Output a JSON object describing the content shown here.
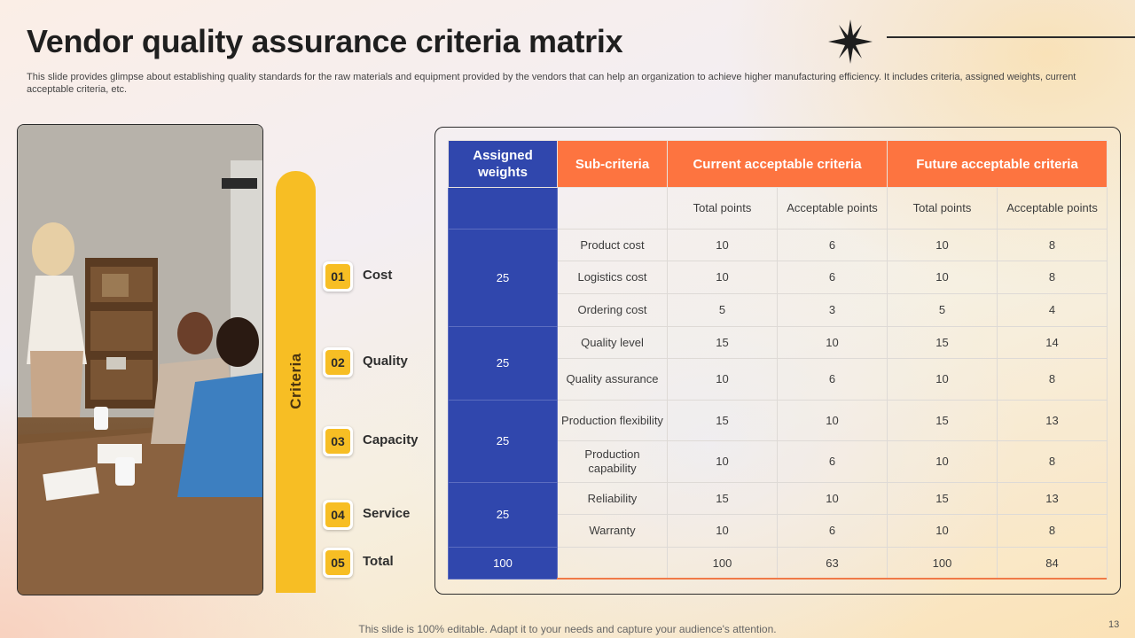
{
  "slide": {
    "title": "Vendor quality assurance criteria matrix",
    "subtitle": "This slide provides glimpse about establishing quality standards for the raw materials and equipment provided by the vendors that can help an organization to achieve higher manufacturing efficiency. It includes criteria, assigned weights, current acceptable criteria, etc.",
    "footer": "This slide is 100% editable. Adapt it to your needs and capture your audience's attention.",
    "page_number": "13"
  },
  "colors": {
    "accent_yellow": "#f7be24",
    "header_blue": "#3047ad",
    "header_orange": "#fd7440"
  },
  "icons": {
    "decoration": "star-burst-icon"
  },
  "photo": {
    "subject": "office-meeting-photo"
  },
  "criteria": {
    "label": "Criteria",
    "items": [
      {
        "num": "01",
        "name": "Cost"
      },
      {
        "num": "02",
        "name": "Quality"
      },
      {
        "num": "03",
        "name": "Capacity"
      },
      {
        "num": "04",
        "name": "Service"
      },
      {
        "num": "05",
        "name": "Total"
      }
    ]
  },
  "table": {
    "headers": {
      "weights": "Assigned weights",
      "sub": "Sub-criteria",
      "current": "Current acceptable criteria",
      "future": "Future acceptable criteria"
    },
    "subheaders": [
      "Total points",
      "Acceptable points",
      "Total points",
      "Acceptable points"
    ],
    "weights": [
      "25",
      "25",
      "25",
      "25"
    ],
    "rows": [
      {
        "sub": "Product cost",
        "ct": "10",
        "ca": "6",
        "ft": "10",
        "fa": "8"
      },
      {
        "sub": "Logistics cost",
        "ct": "10",
        "ca": "6",
        "ft": "10",
        "fa": "8"
      },
      {
        "sub": "Ordering  cost",
        "ct": "5",
        "ca": "3",
        "ft": "5",
        "fa": "4"
      },
      {
        "sub": "Quality level",
        "ct": "15",
        "ca": "10",
        "ft": "15",
        "fa": "14"
      },
      {
        "sub": "Quality assurance",
        "ct": "10",
        "ca": "6",
        "ft": "10",
        "fa": "8"
      },
      {
        "sub": "Production flexibility",
        "ct": "15",
        "ca": "10",
        "ft": "15",
        "fa": "13"
      },
      {
        "sub": "Production capability",
        "ct": "10",
        "ca": "6",
        "ft": "10",
        "fa": "8"
      },
      {
        "sub": "Reliability",
        "ct": "15",
        "ca": "10",
        "ft": "15",
        "fa": "13"
      },
      {
        "sub": "Warranty",
        "ct": "10",
        "ca": "6",
        "ft": "10",
        "fa": "8"
      }
    ],
    "total": {
      "weight": "100",
      "ct": "100",
      "ca": "63",
      "ft": "100",
      "fa": "84"
    }
  }
}
